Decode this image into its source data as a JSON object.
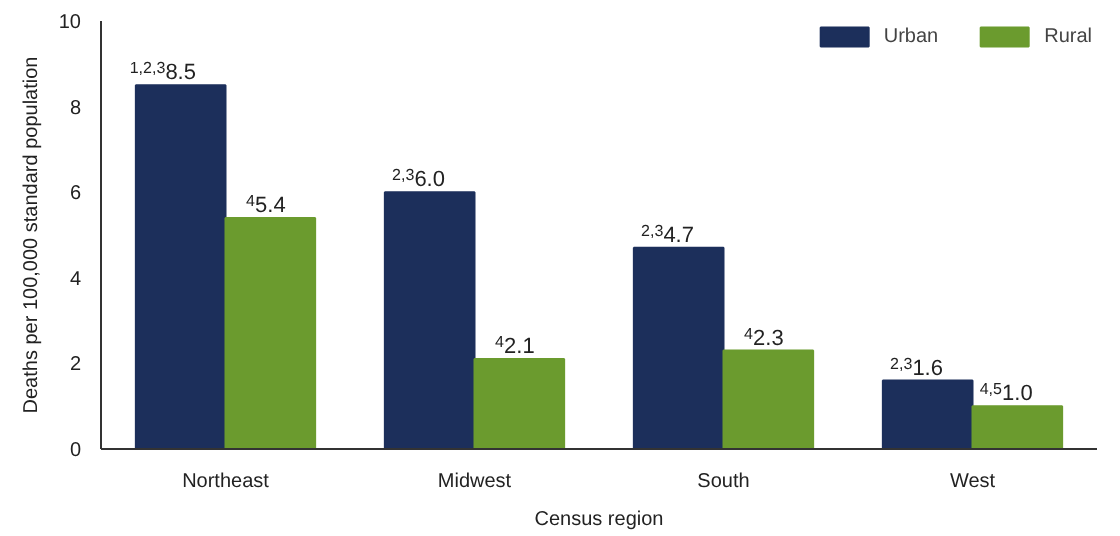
{
  "chart_data": {
    "type": "bar",
    "xlabel": "Census region",
    "ylabel": "Deaths per 100,000 standard population",
    "categories": [
      "Northeast",
      "Midwest",
      "South",
      "West"
    ],
    "series": [
      {
        "name": "Urban",
        "color": "#1c2f5b",
        "values": [
          8.5,
          6.0,
          4.7,
          1.6
        ],
        "value_labels": [
          "$^{1,2,3}$8.5",
          "$^{2,3}$6.0",
          "$^{2,3}$4.7",
          "$^{2,3}$1.6"
        ]
      },
      {
        "name": "Rural",
        "color": "#6b9b2e",
        "values": [
          5.4,
          2.1,
          2.3,
          1.0
        ],
        "value_labels": [
          "$^{4}$5.4",
          "$^{4}$2.1",
          "$^{4}$2.3",
          "$^{4,5}$1.0"
        ]
      }
    ],
    "ylim": [
      0,
      10
    ],
    "yticks": [
      0,
      2,
      4,
      6,
      8,
      10
    ],
    "grid": false,
    "legend": "top right"
  }
}
